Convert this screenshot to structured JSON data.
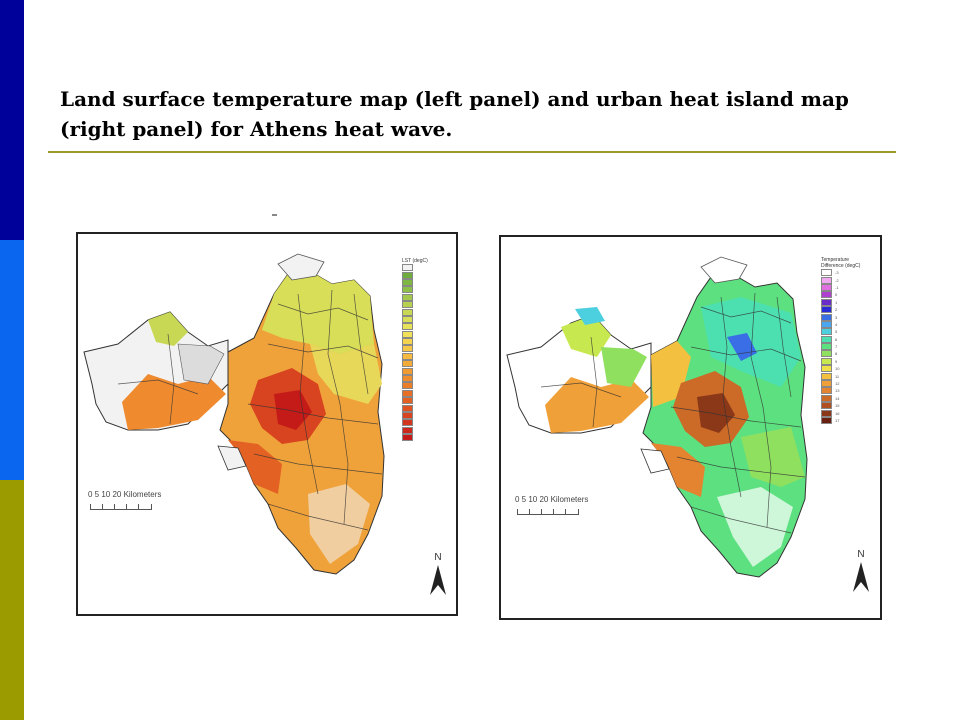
{
  "slide": {
    "title": "Land surface temperature map (left panel) and urban heat island map (right panel) for Athens heat wave."
  },
  "colors": {
    "bar_top": "#00009b",
    "bar_middle": "#0a66ee",
    "bar_bottom": "#9b9b00",
    "rule": "#9b9b2a"
  },
  "maps": {
    "lst": {
      "legend_title": "LST (degC)",
      "scale_label": "0   5  10      20 Kilometers",
      "north_label": "N",
      "legend_colors": [
        "#f2f2f2",
        "#6fae3e",
        "#7eb842",
        "#8ec047",
        "#a3c84c",
        "#b6d050",
        "#c8d854",
        "#d8de58",
        "#e6e25a",
        "#f0e05a",
        "#f4d44e",
        "#f5c746",
        "#f5ba3f",
        "#f3ab38",
        "#f19c32",
        "#ee8d2d",
        "#eb7e29",
        "#e77026",
        "#e36223",
        "#de5321",
        "#d8441f",
        "#d2361d",
        "#cc281b",
        "#c41a18"
      ]
    },
    "uhi": {
      "legend_title": "Temperature\nDifference (degC)",
      "scale_label": "0   5  10      20 Kilometers",
      "north_label": "N",
      "legend_labels": [
        "-3",
        "-2",
        "-1",
        "0",
        "1",
        "2",
        "3",
        "4",
        "5",
        "6",
        "7",
        "8",
        "9",
        "10",
        "11",
        "12",
        "13",
        "14",
        "15",
        "16",
        "17"
      ],
      "legend_colors": [
        "#ffffff",
        "#f0a8f0",
        "#e070e0",
        "#b040d0",
        "#6a2bc8",
        "#2a2ad8",
        "#3a6ee6",
        "#4aa6ee",
        "#4cd0e0",
        "#4ce0b0",
        "#5ce080",
        "#90e060",
        "#c8e850",
        "#f0e048",
        "#f4c040",
        "#f0a038",
        "#e48430",
        "#cc6a28",
        "#b05020",
        "#8a3818",
        "#6a2010"
      ]
    }
  }
}
